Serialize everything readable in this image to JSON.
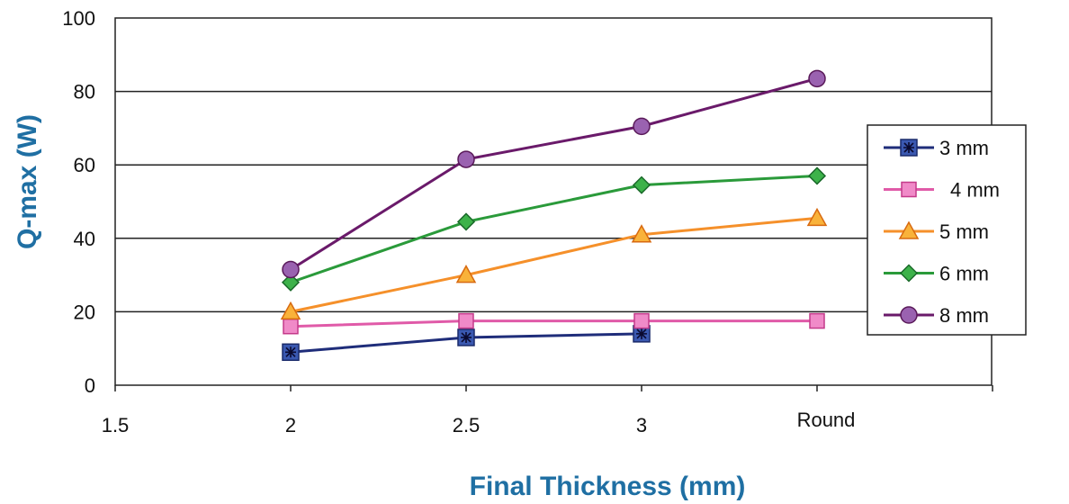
{
  "chart_data": {
    "type": "line",
    "title": "",
    "xlabel": "Final Thickness (mm)",
    "ylabel": "Q-max (W)",
    "x_ticks": [
      "1.5",
      "2",
      "2.5",
      "3",
      "Round"
    ],
    "categories": [
      "2",
      "2.5",
      "3",
      "Round"
    ],
    "ylim": [
      0,
      100
    ],
    "y_ticks": [
      0,
      20,
      40,
      60,
      80,
      100
    ],
    "grid": "horizontal",
    "legend_position": "right",
    "series": [
      {
        "name": "3 mm",
        "color": "#1f2d7a",
        "marker": "square-star",
        "values": [
          9,
          13,
          14,
          null
        ]
      },
      {
        "name": "4 mm",
        "color": "#e05aa8",
        "marker": "square",
        "values": [
          16,
          17.5,
          17.5,
          17.5
        ]
      },
      {
        "name": "5 mm",
        "color": "#f5902a",
        "marker": "triangle",
        "values": [
          20,
          30,
          41,
          45.5
        ]
      },
      {
        "name": "6 mm",
        "color": "#2a9a3a",
        "marker": "diamond",
        "values": [
          28,
          44.5,
          54.5,
          57
        ]
      },
      {
        "name": "8 mm",
        "color": "#6a1a6a",
        "marker": "circle",
        "values": [
          31.5,
          61.5,
          70.5,
          83.5
        ]
      }
    ]
  }
}
